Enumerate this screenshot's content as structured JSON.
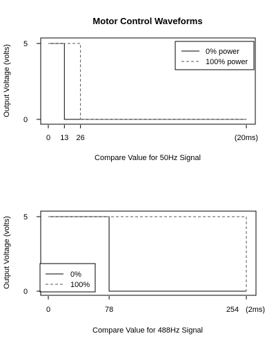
{
  "chart_data": [
    {
      "type": "line",
      "title": "Motor Control Waveforms",
      "xlabel": "Compare Value for 50Hz Signal",
      "ylabel": "Output Voltage (volts)",
      "x_ticks": [
        {
          "value": 0,
          "label": "0"
        },
        {
          "value": 13,
          "label": "13"
        },
        {
          "value": 26,
          "label": "26"
        },
        {
          "value": 160,
          "label": "(20ms)"
        }
      ],
      "y_ticks": [
        0,
        5
      ],
      "xlim": [
        0,
        160
      ],
      "ylim": [
        0,
        5
      ],
      "legend_position": "top-right",
      "series": [
        {
          "name": "0% power",
          "style": "solid",
          "x": [
            0,
            13,
            13,
            160
          ],
          "y": [
            5,
            5,
            0,
            0
          ]
        },
        {
          "name": "100% power",
          "style": "dashed",
          "x": [
            0,
            26,
            26,
            160
          ],
          "y": [
            5,
            5,
            0,
            0
          ]
        }
      ]
    },
    {
      "type": "line",
      "title": "",
      "xlabel": "Compare Value for 488Hz Signal",
      "ylabel": "Output Voltage (volts)",
      "x_ticks": [
        {
          "value": 0,
          "label": "0"
        },
        {
          "value": 78,
          "label": "78"
        },
        {
          "value": 254,
          "label": "254"
        },
        {
          "value": 280,
          "label": "(2ms)"
        }
      ],
      "y_ticks": [
        0,
        5
      ],
      "xlim": [
        0,
        254
      ],
      "ylim": [
        0,
        5
      ],
      "legend_position": "bottom-left",
      "series": [
        {
          "name": "0%",
          "style": "solid",
          "x": [
            0,
            78,
            78,
            254
          ],
          "y": [
            5,
            5,
            0,
            0
          ]
        },
        {
          "name": "100%",
          "style": "dashed",
          "x": [
            0,
            254,
            254
          ],
          "y": [
            5,
            5,
            0
          ]
        }
      ]
    }
  ]
}
